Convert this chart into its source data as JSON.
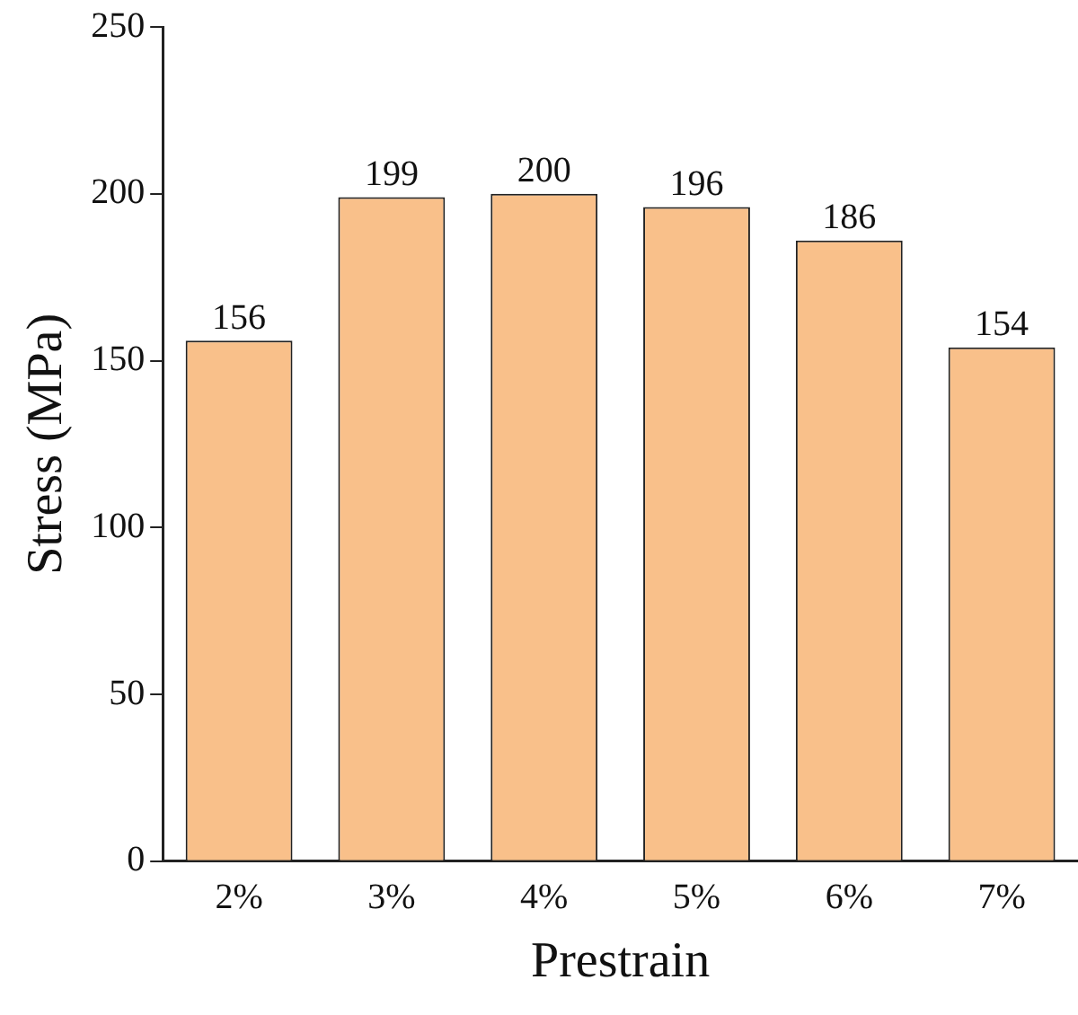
{
  "chart_data": {
    "type": "bar",
    "xlabel": "Prestrain",
    "ylabel": "Stress (MPa)",
    "categories": [
      "2%",
      "3%",
      "4%",
      "5%",
      "6%",
      "7%"
    ],
    "values": [
      156,
      199,
      200,
      196,
      186,
      154
    ],
    "color": "#f9c08a",
    "ylim": [
      0,
      250
    ],
    "yticks": [
      0,
      50,
      100,
      150,
      200,
      250
    ],
    "data_labels": true,
    "grid": false,
    "legend": false
  }
}
